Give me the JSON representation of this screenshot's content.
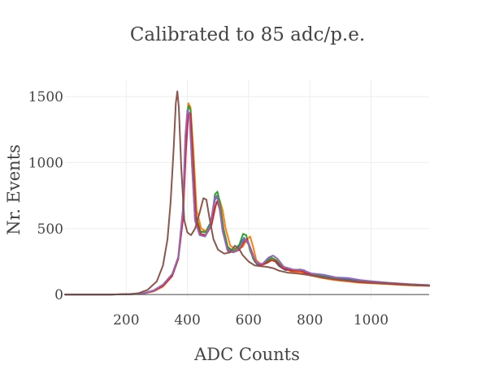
{
  "chart_data": {
    "type": "line",
    "title": "Calibrated to 85 adc/p.e.",
    "xlabel": "ADC Counts",
    "ylabel": "Nr. Events",
    "xlim": [
      0,
      1190
    ],
    "ylim": [
      -30,
      1630
    ],
    "xticks": [
      200,
      400,
      600,
      800,
      1000
    ],
    "yticks": [
      0,
      500,
      1000,
      1500
    ],
    "grid": true,
    "legend": "none",
    "series": [
      {
        "color": "#1f77b4",
        "points": [
          [
            0,
            0
          ],
          [
            150,
            0
          ],
          [
            220,
            3
          ],
          [
            260,
            10
          ],
          [
            290,
            30
          ],
          [
            320,
            70
          ],
          [
            350,
            150
          ],
          [
            370,
            280
          ],
          [
            385,
            600
          ],
          [
            395,
            1150
          ],
          [
            402,
            1390
          ],
          [
            408,
            1350
          ],
          [
            415,
            1000
          ],
          [
            425,
            560
          ],
          [
            440,
            470
          ],
          [
            460,
            480
          ],
          [
            475,
            540
          ],
          [
            490,
            720
          ],
          [
            498,
            740
          ],
          [
            505,
            660
          ],
          [
            515,
            480
          ],
          [
            530,
            350
          ],
          [
            550,
            330
          ],
          [
            570,
            370
          ],
          [
            585,
            430
          ],
          [
            600,
            380
          ],
          [
            615,
            270
          ],
          [
            630,
            220
          ],
          [
            650,
            230
          ],
          [
            665,
            270
          ],
          [
            680,
            270
          ],
          [
            700,
            215
          ],
          [
            720,
            185
          ],
          [
            750,
            185
          ],
          [
            780,
            185
          ],
          [
            800,
            160
          ],
          [
            840,
            140
          ],
          [
            880,
            125
          ],
          [
            920,
            115
          ],
          [
            960,
            105
          ],
          [
            1000,
            95
          ],
          [
            1050,
            88
          ],
          [
            1100,
            80
          ],
          [
            1150,
            75
          ],
          [
            1190,
            70
          ]
        ]
      },
      {
        "color": "#ff7f0e",
        "points": [
          [
            0,
            0
          ],
          [
            150,
            0
          ],
          [
            220,
            3
          ],
          [
            260,
            10
          ],
          [
            290,
            25
          ],
          [
            320,
            60
          ],
          [
            350,
            140
          ],
          [
            370,
            270
          ],
          [
            385,
            620
          ],
          [
            395,
            1200
          ],
          [
            403,
            1450
          ],
          [
            410,
            1420
          ],
          [
            420,
            1080
          ],
          [
            430,
            640
          ],
          [
            445,
            500
          ],
          [
            460,
            480
          ],
          [
            480,
            540
          ],
          [
            495,
            700
          ],
          [
            505,
            720
          ],
          [
            515,
            640
          ],
          [
            525,
            500
          ],
          [
            540,
            370
          ],
          [
            560,
            340
          ],
          [
            580,
            360
          ],
          [
            595,
            420
          ],
          [
            605,
            440
          ],
          [
            615,
            360
          ],
          [
            625,
            260
          ],
          [
            640,
            230
          ],
          [
            660,
            250
          ],
          [
            675,
            275
          ],
          [
            690,
            260
          ],
          [
            710,
            205
          ],
          [
            740,
            175
          ],
          [
            770,
            170
          ],
          [
            800,
            145
          ],
          [
            840,
            125
          ],
          [
            880,
            110
          ],
          [
            920,
            100
          ],
          [
            960,
            90
          ],
          [
            1000,
            85
          ],
          [
            1050,
            80
          ],
          [
            1100,
            72
          ],
          [
            1150,
            68
          ],
          [
            1190,
            66
          ]
        ]
      },
      {
        "color": "#2ca02c",
        "points": [
          [
            0,
            0
          ],
          [
            150,
            0
          ],
          [
            220,
            3
          ],
          [
            260,
            12
          ],
          [
            290,
            30
          ],
          [
            320,
            70
          ],
          [
            350,
            145
          ],
          [
            370,
            275
          ],
          [
            385,
            610
          ],
          [
            395,
            1180
          ],
          [
            403,
            1430
          ],
          [
            410,
            1400
          ],
          [
            418,
            1050
          ],
          [
            428,
            600
          ],
          [
            442,
            480
          ],
          [
            460,
            470
          ],
          [
            478,
            540
          ],
          [
            490,
            760
          ],
          [
            498,
            780
          ],
          [
            506,
            700
          ],
          [
            518,
            500
          ],
          [
            532,
            360
          ],
          [
            550,
            330
          ],
          [
            570,
            380
          ],
          [
            582,
            460
          ],
          [
            592,
            450
          ],
          [
            605,
            330
          ],
          [
            620,
            250
          ],
          [
            640,
            220
          ],
          [
            660,
            250
          ],
          [
            675,
            280
          ],
          [
            690,
            260
          ],
          [
            710,
            210
          ],
          [
            740,
            185
          ],
          [
            770,
            190
          ],
          [
            800,
            155
          ],
          [
            840,
            135
          ],
          [
            880,
            120
          ],
          [
            920,
            108
          ],
          [
            960,
            98
          ],
          [
            1000,
            90
          ],
          [
            1050,
            84
          ],
          [
            1100,
            76
          ],
          [
            1150,
            70
          ],
          [
            1190,
            68
          ]
        ]
      },
      {
        "color": "#d62728",
        "points": [
          [
            0,
            0
          ],
          [
            150,
            0
          ],
          [
            220,
            3
          ],
          [
            260,
            10
          ],
          [
            290,
            28
          ],
          [
            320,
            65
          ],
          [
            350,
            140
          ],
          [
            370,
            270
          ],
          [
            385,
            560
          ],
          [
            395,
            1080
          ],
          [
            403,
            1380
          ],
          [
            410,
            1370
          ],
          [
            418,
            1000
          ],
          [
            428,
            580
          ],
          [
            442,
            460
          ],
          [
            460,
            450
          ],
          [
            478,
            520
          ],
          [
            490,
            660
          ],
          [
            498,
            710
          ],
          [
            506,
            640
          ],
          [
            518,
            460
          ],
          [
            532,
            330
          ],
          [
            550,
            320
          ],
          [
            570,
            340
          ],
          [
            585,
            400
          ],
          [
            595,
            420
          ],
          [
            608,
            340
          ],
          [
            622,
            250
          ],
          [
            640,
            220
          ],
          [
            660,
            240
          ],
          [
            675,
            260
          ],
          [
            690,
            250
          ],
          [
            710,
            200
          ],
          [
            740,
            180
          ],
          [
            770,
            180
          ],
          [
            800,
            150
          ],
          [
            840,
            130
          ],
          [
            880,
            115
          ],
          [
            920,
            105
          ],
          [
            960,
            95
          ],
          [
            1000,
            88
          ],
          [
            1050,
            82
          ],
          [
            1100,
            75
          ],
          [
            1150,
            70
          ],
          [
            1190,
            66
          ]
        ]
      },
      {
        "color": "#9467bd",
        "points": [
          [
            0,
            0
          ],
          [
            150,
            0
          ],
          [
            220,
            3
          ],
          [
            260,
            12
          ],
          [
            290,
            32
          ],
          [
            320,
            75
          ],
          [
            350,
            155
          ],
          [
            370,
            285
          ],
          [
            385,
            640
          ],
          [
            393,
            1200
          ],
          [
            400,
            1400
          ],
          [
            407,
            1360
          ],
          [
            415,
            980
          ],
          [
            425,
            560
          ],
          [
            440,
            450
          ],
          [
            458,
            440
          ],
          [
            475,
            520
          ],
          [
            488,
            720
          ],
          [
            496,
            750
          ],
          [
            504,
            680
          ],
          [
            515,
            490
          ],
          [
            530,
            340
          ],
          [
            550,
            320
          ],
          [
            570,
            350
          ],
          [
            585,
            420
          ],
          [
            598,
            400
          ],
          [
            612,
            300
          ],
          [
            628,
            240
          ],
          [
            645,
            230
          ],
          [
            665,
            280
          ],
          [
            680,
            295
          ],
          [
            695,
            270
          ],
          [
            715,
            210
          ],
          [
            745,
            190
          ],
          [
            775,
            185
          ],
          [
            805,
            160
          ],
          [
            845,
            150
          ],
          [
            885,
            130
          ],
          [
            925,
            125
          ],
          [
            965,
            110
          ],
          [
            1005,
            100
          ],
          [
            1055,
            90
          ],
          [
            1105,
            82
          ],
          [
            1150,
            76
          ],
          [
            1190,
            72
          ]
        ]
      },
      {
        "color": "#8c564b",
        "points": [
          [
            0,
            0
          ],
          [
            150,
            0
          ],
          [
            210,
            3
          ],
          [
            240,
            10
          ],
          [
            270,
            35
          ],
          [
            300,
            100
          ],
          [
            320,
            220
          ],
          [
            335,
            420
          ],
          [
            345,
            700
          ],
          [
            355,
            1100
          ],
          [
            362,
            1450
          ],
          [
            367,
            1540
          ],
          [
            372,
            1420
          ],
          [
            380,
            950
          ],
          [
            390,
            560
          ],
          [
            400,
            470
          ],
          [
            412,
            450
          ],
          [
            425,
            500
          ],
          [
            440,
            620
          ],
          [
            452,
            730
          ],
          [
            462,
            720
          ],
          [
            472,
            580
          ],
          [
            485,
            420
          ],
          [
            500,
            340
          ],
          [
            520,
            310
          ],
          [
            540,
            320
          ],
          [
            555,
            370
          ],
          [
            568,
            350
          ],
          [
            580,
            300
          ],
          [
            600,
            250
          ],
          [
            620,
            220
          ],
          [
            640,
            215
          ],
          [
            660,
            210
          ],
          [
            680,
            200
          ],
          [
            700,
            180
          ],
          [
            730,
            165
          ],
          [
            760,
            160
          ],
          [
            790,
            150
          ],
          [
            830,
            135
          ],
          [
            870,
            120
          ],
          [
            910,
            110
          ],
          [
            950,
            100
          ],
          [
            1000,
            92
          ],
          [
            1050,
            85
          ],
          [
            1100,
            78
          ],
          [
            1150,
            72
          ],
          [
            1190,
            68
          ]
        ]
      }
    ]
  }
}
